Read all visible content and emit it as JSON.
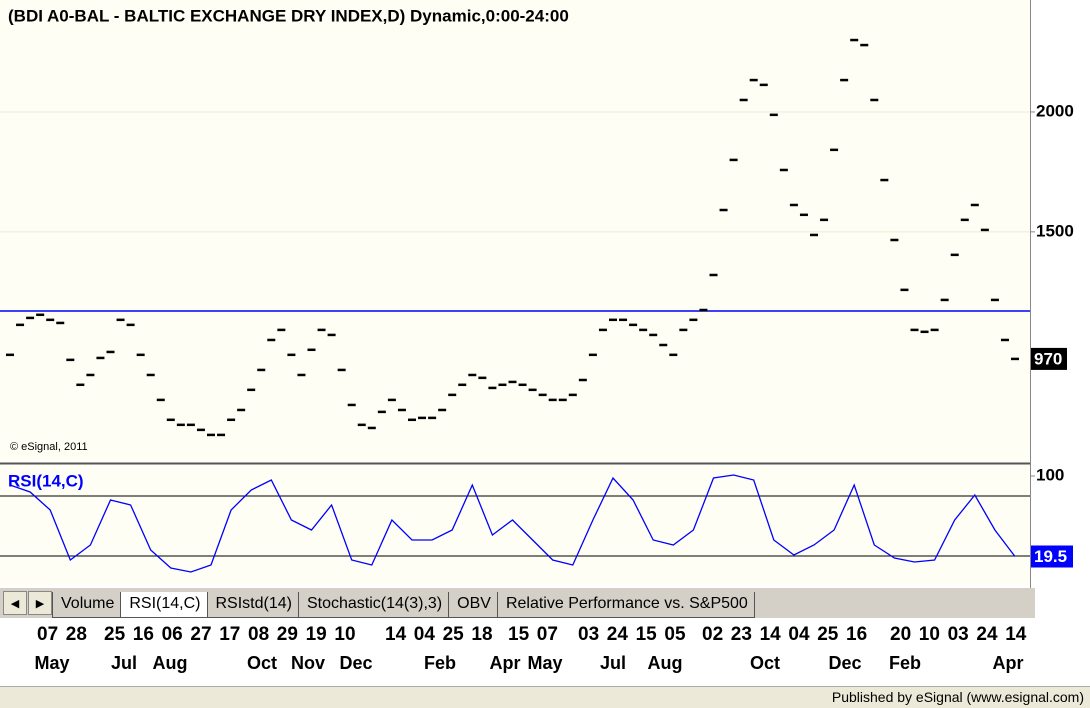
{
  "chart_data": [
    {
      "type": "line",
      "title": "(BDI A0-BAL - BALTIC EXCHANGE DRY INDEX,D) Dynamic,0:00-24:00",
      "annotation": "© eSignal, 2011",
      "color": "#000000",
      "reference_line": 1170,
      "reference_color": "#0000ff",
      "ylim": [
        540,
        2467
      ],
      "yticks": [
        1500,
        2000
      ],
      "grid": true,
      "values": [
        987,
        1112,
        1141,
        1154,
        1133,
        1120,
        966,
        862,
        903,
        974,
        999,
        1133,
        1112,
        987,
        903,
        799,
        716,
        695,
        695,
        674,
        653,
        653,
        716,
        757,
        841,
        924,
        1049,
        1091,
        987,
        903,
        1008,
        1091,
        1070,
        924,
        778,
        695,
        682,
        749,
        799,
        757,
        716,
        724,
        724,
        757,
        820,
        862,
        903,
        891,
        849,
        862,
        874,
        862,
        841,
        820,
        799,
        799,
        820,
        882,
        987,
        1091,
        1133,
        1133,
        1112,
        1091,
        1070,
        1028,
        987,
        1091,
        1133,
        1174,
        1320,
        1591,
        1800,
        2050,
        2133,
        2113,
        1988,
        1758,
        1612,
        1571,
        1487,
        1550,
        1842,
        2133,
        2300,
        2279,
        2050,
        1716,
        1466,
        1258,
        1091,
        1083,
        1091,
        1216,
        1404,
        1550,
        1612,
        1508,
        1216,
        1049,
        970
      ]
    },
    {
      "type": "line",
      "title": "RSI(14,C)",
      "color": "#0000ff",
      "ylim": [
        -4,
        111
      ],
      "yticks": [
        100
      ],
      "levels": [
        80,
        20
      ],
      "values": [
        91,
        84,
        66,
        16,
        31,
        76,
        71,
        26,
        8,
        4,
        11,
        66,
        86,
        96,
        56,
        46,
        71,
        16,
        11,
        56,
        36,
        36,
        46,
        91,
        41,
        56,
        36,
        16,
        11,
        56,
        98,
        76,
        36,
        31,
        46,
        98,
        101,
        96,
        36,
        21,
        31,
        46,
        91,
        31,
        18,
        14,
        16,
        56,
        81,
        46,
        19.5
      ]
    }
  ],
  "x_axis": {
    "days": [
      "07",
      "28",
      "25",
      "16",
      "06",
      "27",
      "17",
      "08",
      "29",
      "19",
      "10",
      "14",
      "04",
      "25",
      "18",
      "15",
      "07",
      "03",
      "24",
      "15",
      "05",
      "02",
      "23",
      "14",
      "04",
      "25",
      "16",
      "20",
      "10",
      "03",
      "24",
      "14"
    ],
    "months": [
      "May",
      "Jul",
      "Aug",
      "Oct",
      "Nov",
      "Dec",
      "Feb",
      "Apr",
      "May",
      "Jul",
      "Aug",
      "Oct",
      "Dec",
      "Feb",
      "Apr"
    ]
  },
  "tabs": [
    "Volume",
    "RSI(14,C)",
    "RSIstd(14)",
    "Stochastic(14(3),3)",
    "OBV",
    "Relative Performance vs. S&P500"
  ],
  "active_tab": 1,
  "footer": "Published by eSignal (www.esignal.com)"
}
